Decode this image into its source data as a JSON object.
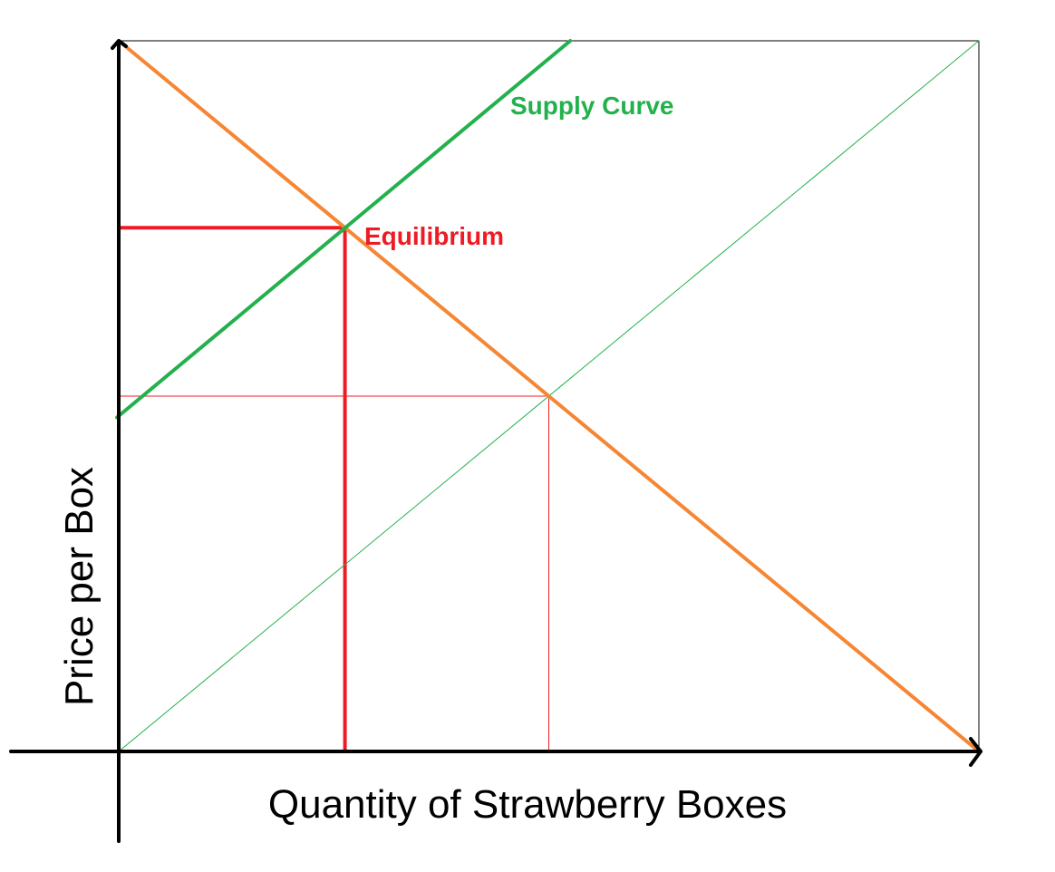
{
  "chart_data": {
    "type": "line",
    "title": "",
    "xlabel": "Quantity of Strawberry Boxes",
    "ylabel": "Price per Box",
    "xlim": [
      0,
      100
    ],
    "ylim": [
      0,
      100
    ],
    "grid": false,
    "axis_ticks": false,
    "colors": {
      "axes": "#000000",
      "demand": "#f58634",
      "supply": "#22b14c",
      "equilibrium": "#ed1c24",
      "frame": "#000000"
    },
    "series": [
      {
        "key": "demand",
        "x": [
          0,
          100
        ],
        "y": [
          100,
          0
        ]
      },
      {
        "key": "supply",
        "name": "Supply Curve",
        "x": [
          0,
          52.5
        ],
        "y": [
          47,
          100
        ]
      },
      {
        "key": "supply_reference",
        "x": [
          0,
          100
        ],
        "y": [
          0,
          100
        ]
      }
    ],
    "equilibrium": {
      "label": "Equilibrium",
      "x": 26.3,
      "y": 73.7
    },
    "reference_point": {
      "x": 50,
      "y": 50
    }
  }
}
